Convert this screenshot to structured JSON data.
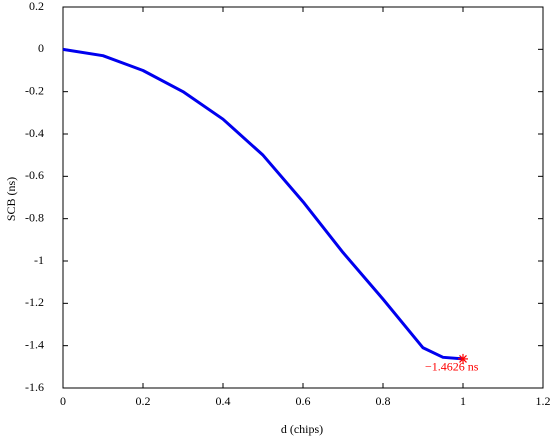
{
  "chart_data": {
    "type": "line",
    "x_label": "d (chips)",
    "y_label": "SCB (ns)",
    "x": [
      0,
      0.1,
      0.2,
      0.3,
      0.4,
      0.5,
      0.6,
      0.7,
      0.8,
      0.9,
      0.95,
      1.0
    ],
    "series": [
      {
        "color": "#0000ee",
        "values": [
          0,
          -0.03,
          -0.1,
          -0.2,
          -0.33,
          -0.5,
          -0.72,
          -0.96,
          -1.18,
          -1.41,
          -1.455,
          -1.4626
        ]
      }
    ],
    "annotation": {
      "x": 1.0,
      "y": -1.4626,
      "label": "−1.4626 ns",
      "color": "#ff0000"
    },
    "xlim": [
      0,
      1.2
    ],
    "xticks": [
      0,
      0.2,
      0.4,
      0.6,
      0.8,
      1,
      1.2
    ],
    "ylim": [
      -1.6,
      0.2
    ],
    "yticks": [
      0.2,
      0,
      -0.2,
      -0.4,
      -0.6,
      -0.8,
      -1,
      -1.2,
      -1.4,
      -1.6
    ],
    "grid": false
  }
}
